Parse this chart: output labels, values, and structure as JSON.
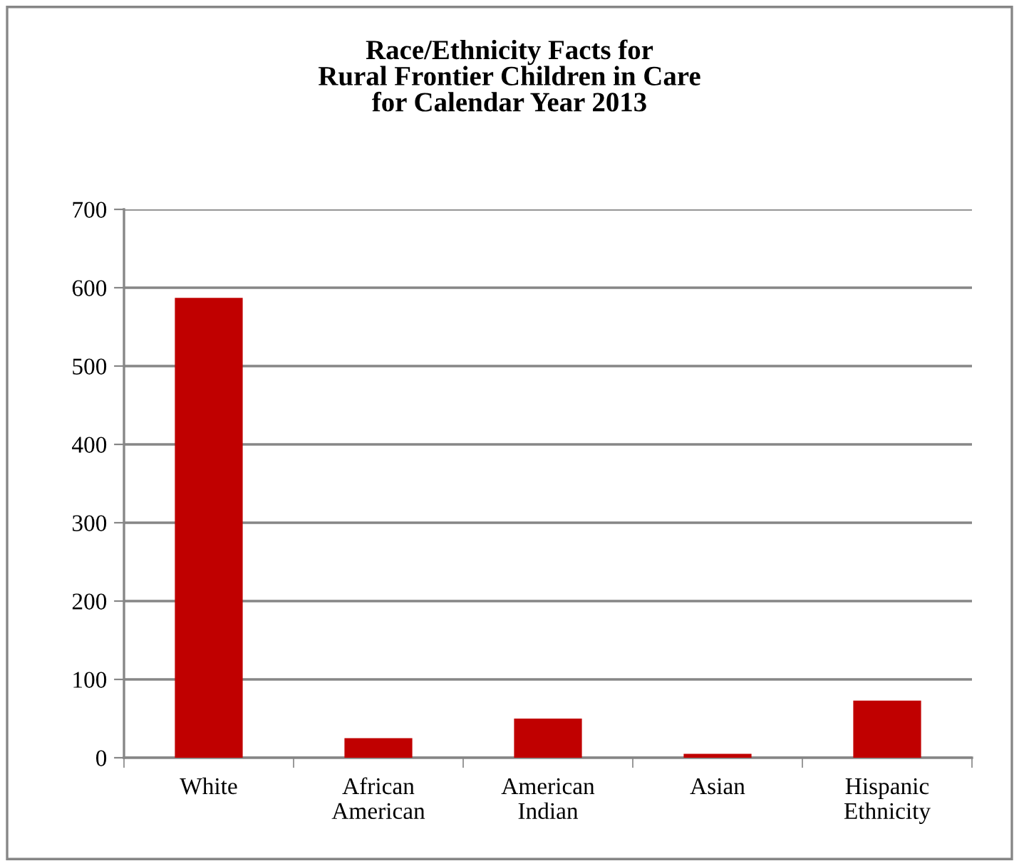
{
  "chart_data": {
    "type": "bar",
    "title": "Race/Ethnicity Facts for\nRural Frontier Children in Care\nfor Calendar Year 2013",
    "categories": [
      "White",
      "African\nAmerican",
      "American\nIndian",
      "Asian",
      "Hispanic\nEthnicity"
    ],
    "values": [
      587,
      25,
      50,
      5,
      73
    ],
    "color": "#c00000",
    "ylim": [
      0,
      700
    ],
    "yticks": [
      0,
      100,
      200,
      300,
      400,
      500,
      600,
      700
    ],
    "grid": "y",
    "legend": false
  }
}
